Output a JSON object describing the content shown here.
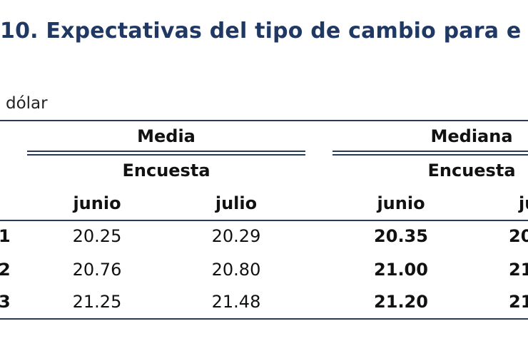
{
  "title": "10. Expectativas del tipo de cambio para e",
  "unit": "dólar",
  "header": {
    "media": "Media",
    "mediana": "Mediana",
    "encuesta_media": "Encuesta",
    "encuesta_mediana": "Encuesta",
    "col_media_junio": "junio",
    "col_media_julio": "julio",
    "col_mediana_junio": "junio",
    "col_mediana_julio_partial": "ju"
  },
  "rows": [
    {
      "label": "1",
      "media_junio": "20.25",
      "media_julio": "20.29",
      "mediana_junio": "20.35",
      "mediana_julio_partial": "20"
    },
    {
      "label": "2",
      "media_junio": "20.76",
      "media_julio": "20.80",
      "mediana_junio": "21.00",
      "mediana_julio_partial": "21"
    },
    {
      "label": "3",
      "media_junio": "21.25",
      "media_julio": "21.48",
      "mediana_junio": "21.20",
      "mediana_julio_partial": "21"
    }
  ]
}
